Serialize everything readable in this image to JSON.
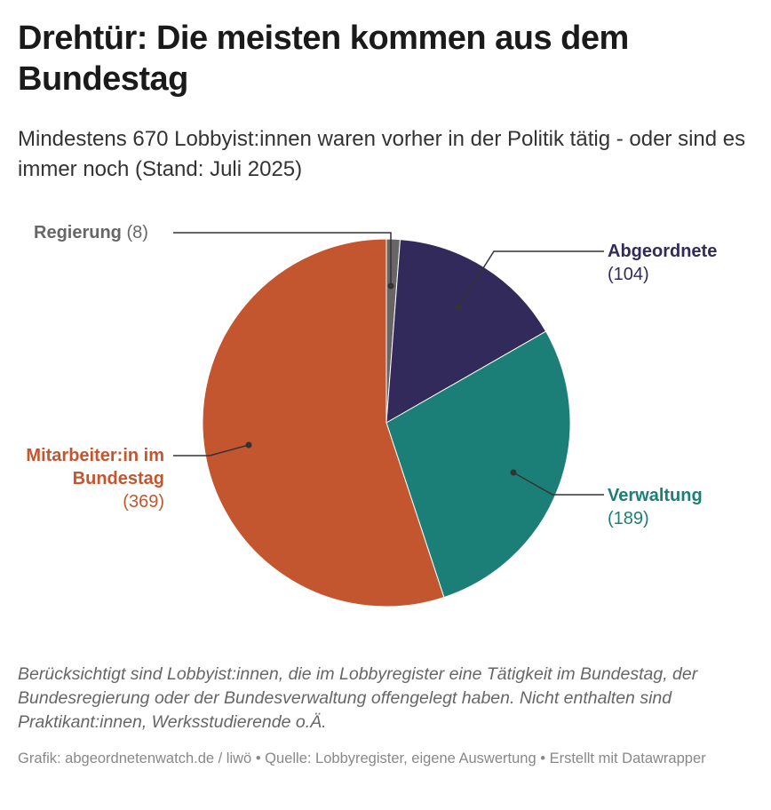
{
  "title": "Drehtür: Die meisten kommen aus dem Bundestag",
  "subtitle": "Mindestens 670 Lobbyist:innen waren vorher in der Politik tätig - oder sind es immer noch (Stand: Juli 2025)",
  "chart_data": {
    "type": "pie",
    "categories": [
      "Regierung",
      "Abgeordnete",
      "Verwaltung",
      "Mitarbeiter:in im Bundestag"
    ],
    "values": [
      8,
      104,
      189,
      369
    ],
    "value_labels": [
      "(8)",
      "(104)",
      "(189)",
      "(369)"
    ],
    "colors": [
      "#666666",
      "#322a5b",
      "#1b7f77",
      "#c4562f"
    ],
    "start": "12 o'clock, clockwise"
  },
  "notes": "Berücksichtigt sind Lobbyist:innen, die im Lobbyregister eine Tätigkeit im Bundestag, der Bundesregierung oder der Bundesverwaltung offengelegt haben. Nicht enthalten sind Praktikant:innen, Werksstudierende o.Ä.",
  "source": "Grafik: abgeordnetenwatch.de / liwö • Quelle: Lobbyregister, eigene Auswertung • Erstellt mit Datawrapper"
}
